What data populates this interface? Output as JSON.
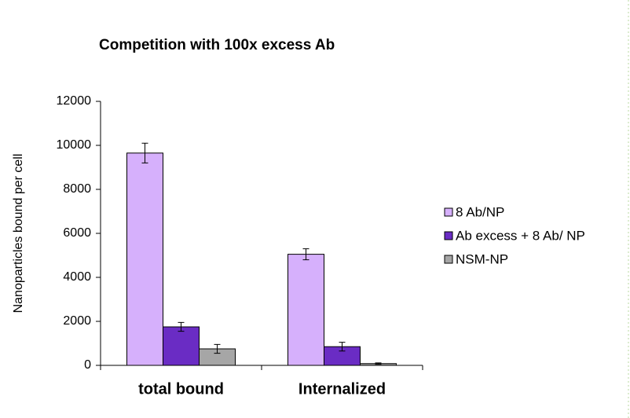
{
  "chart_data": {
    "type": "bar",
    "title": "Competition with 100x excess Ab",
    "y_label": "Nanoparticles bound per cell",
    "categories": [
      "total bound",
      "Internalized"
    ],
    "series": [
      {
        "name": "8 Ab/NP",
        "color": "#d6b0fc",
        "values": [
          9650,
          5050
        ],
        "errors": [
          450,
          250
        ]
      },
      {
        "name": "Ab excess + 8 Ab/ NP",
        "color": "#6a2cc4",
        "values": [
          1750,
          850
        ],
        "errors": [
          200,
          200
        ]
      },
      {
        "name": "NSM-NP",
        "color": "#a6a6a6",
        "values": [
          750,
          80
        ],
        "errors": [
          200,
          30
        ]
      }
    ],
    "ylim": [
      0,
      12000
    ],
    "yticks": [
      0,
      2000,
      4000,
      6000,
      8000,
      10000,
      12000
    ],
    "legend": "right"
  }
}
